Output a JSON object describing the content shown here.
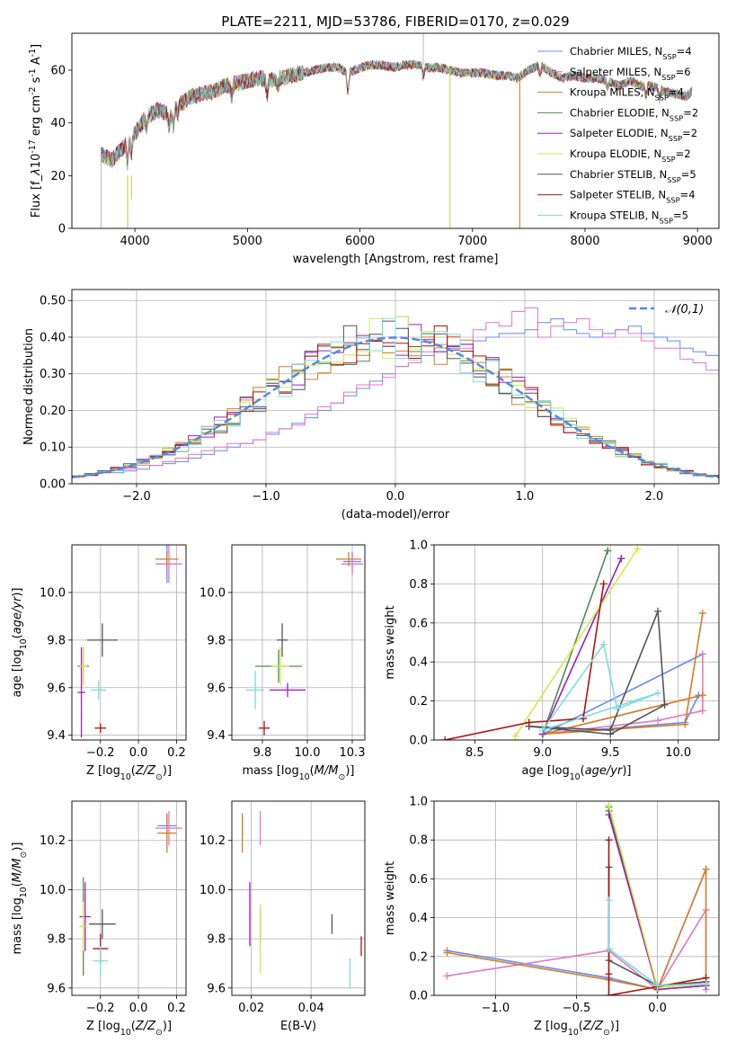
{
  "title": "PLATE=2211, MJD=53786, FIBERID=0170, z=0.029",
  "chart_data": [
    {
      "id": "spectrum",
      "type": "line",
      "title": "PLATE=2211, MJD=53786, FIBERID=0170, z=0.029",
      "xlabel": "wavelength [Angstrom, rest frame]",
      "ylabel": "Flux [f$_\\lambda$10$^{-17}$ erg cm$^{-2}$ s$^{-1}$ A$^{-1}$]",
      "xlim": [
        3440,
        9190
      ],
      "ylim": [
        0,
        74
      ],
      "xticks": [
        4000,
        5000,
        6000,
        7000,
        8000,
        9000
      ],
      "yticks": [
        0,
        20,
        40,
        60
      ],
      "grid": false,
      "legend_position": "top-right",
      "legend": [
        {
          "name": "Chabrier MILES, N$_{SSP}$=4",
          "color": "#6688ff"
        },
        {
          "name": "Salpeter MILES, N$_{SSP}$=6",
          "color": "#e377c2"
        },
        {
          "name": "Kroupa MILES, N$_{SSP}$=4",
          "color": "#d27f20"
        },
        {
          "name": "Chabrier ELODIE, N$_{SSP}$=2",
          "color": "#558855"
        },
        {
          "name": "Salpeter ELODIE, N$_{SSP}$=2",
          "color": "#9a20c0"
        },
        {
          "name": "Kroupa ELODIE, N$_{SSP}$=2",
          "color": "#d4e84e"
        },
        {
          "name": "Chabrier STELIB, N$_{SSP}$=5",
          "color": "#555555"
        },
        {
          "name": "Salpeter STELIB, N$_{SSP}$=4",
          "color": "#b01010"
        },
        {
          "name": "Kroupa STELIB, N$_{SSP}$=5",
          "color": "#7fdcdc"
        }
      ],
      "continuum": [
        [
          3700,
          28
        ],
        [
          3800,
          26
        ],
        [
          3900,
          31
        ],
        [
          4000,
          36
        ],
        [
          4100,
          42
        ],
        [
          4200,
          45
        ],
        [
          4300,
          43
        ],
        [
          4400,
          47
        ],
        [
          4500,
          50
        ],
        [
          4600,
          51
        ],
        [
          4700,
          52
        ],
        [
          4800,
          54
        ],
        [
          4900,
          55
        ],
        [
          5000,
          56
        ],
        [
          5100,
          57
        ],
        [
          5200,
          56
        ],
        [
          5300,
          57
        ],
        [
          5400,
          58
        ],
        [
          5500,
          59
        ],
        [
          5600,
          60
        ],
        [
          5700,
          61
        ],
        [
          5800,
          61
        ],
        [
          5900,
          59
        ],
        [
          6000,
          61
        ],
        [
          6100,
          62
        ],
        [
          6200,
          62
        ],
        [
          6300,
          61
        ],
        [
          6400,
          62
        ],
        [
          6500,
          62
        ],
        [
          6600,
          61
        ],
        [
          6700,
          61
        ],
        [
          6800,
          60
        ],
        [
          6900,
          59
        ],
        [
          7000,
          59
        ],
        [
          7100,
          59
        ],
        [
          7200,
          58
        ],
        [
          7300,
          58
        ],
        [
          7400,
          57
        ],
        [
          7500,
          60
        ],
        [
          7600,
          62
        ],
        [
          7700,
          59
        ],
        [
          7800,
          57
        ],
        [
          7900,
          58
        ],
        [
          8000,
          57
        ],
        [
          8100,
          57
        ],
        [
          8200,
          56
        ],
        [
          8300,
          54
        ],
        [
          8400,
          56
        ],
        [
          8500,
          54
        ],
        [
          8600,
          54
        ],
        [
          8700,
          52
        ],
        [
          8800,
          51
        ],
        [
          8900,
          50
        ],
        [
          8950,
          52
        ]
      ],
      "features": [
        {
          "x": 3700,
          "y": 0
        },
        {
          "x": 3935,
          "y": 0
        },
        {
          "x": 3970,
          "y": 11
        },
        {
          "x": 4340,
          "y": 35
        },
        {
          "x": 5175,
          "y": 46
        },
        {
          "x": 5890,
          "y": 50
        },
        {
          "x": 6563,
          "y": 74
        },
        {
          "x": 6800,
          "y": 0
        },
        {
          "x": 7420,
          "y": 0
        }
      ]
    },
    {
      "id": "residuals",
      "type": "line",
      "xlabel": "(data-model)/error",
      "ylabel": "Normed distribution",
      "xlim": [
        -2.5,
        2.5
      ],
      "ylim": [
        0,
        0.53
      ],
      "xticks": [
        -2,
        -1,
        0,
        1,
        2
      ],
      "yticks": [
        0.0,
        0.1,
        0.2,
        0.3,
        0.4,
        0.5
      ],
      "grid": true,
      "legend_position": "top-right",
      "legend": [
        {
          "name": "$\\mathcal{N}(0,1)$",
          "color": "#5588dd",
          "style": "dashed"
        }
      ],
      "reference_curve": "normal(0,1)",
      "histogram_bins": [
        -2.5,
        2.5,
        0.1
      ],
      "histogram_series": [
        {
          "color": "#6688ff",
          "values": [
            0.02,
            0.025,
            0.03,
            0.03,
            0.035,
            0.04,
            0.05,
            0.055,
            0.06,
            0.07,
            0.08,
            0.09,
            0.1,
            0.11,
            0.12,
            0.135,
            0.15,
            0.165,
            0.18,
            0.2,
            0.22,
            0.24,
            0.26,
            0.28,
            0.3,
            0.32,
            0.33,
            0.35,
            0.36,
            0.37,
            0.38,
            0.39,
            0.4,
            0.41,
            0.41,
            0.42,
            0.44,
            0.45,
            0.42,
            0.41,
            0.4,
            0.41,
            0.42,
            0.43,
            0.41,
            0.4,
            0.39,
            0.37,
            0.36,
            0.35
          ]
        },
        {
          "color": "#e377c2",
          "values": [
            0.02,
            0.025,
            0.03,
            0.04,
            0.04,
            0.05,
            0.05,
            0.06,
            0.07,
            0.08,
            0.09,
            0.1,
            0.11,
            0.11,
            0.12,
            0.14,
            0.15,
            0.16,
            0.19,
            0.21,
            0.22,
            0.25,
            0.27,
            0.27,
            0.29,
            0.32,
            0.33,
            0.36,
            0.38,
            0.4,
            0.37,
            0.42,
            0.44,
            0.43,
            0.47,
            0.48,
            0.4,
            0.43,
            0.44,
            0.45,
            0.42,
            0.4,
            0.42,
            0.41,
            0.39,
            0.37,
            0.37,
            0.34,
            0.33,
            0.31
          ]
        }
      ]
    },
    {
      "id": "age-vs-Z",
      "type": "scatter",
      "xlabel": "Z [log$_{10}$($Z/Z_\\odot$)]",
      "ylabel": "age  [log$_{10}$($age/yr$)]",
      "xlim": [
        -0.35,
        0.25
      ],
      "ylim": [
        9.38,
        10.2
      ],
      "xticks": [
        -0.2,
        0.0,
        0.2
      ],
      "yticks": [
        9.4,
        9.6,
        9.8,
        10.0
      ],
      "grid": true,
      "points": [
        {
          "x": 0.15,
          "y": 10.12,
          "xerr": 0.05,
          "yerr": 0.08,
          "color": "#6688ff"
        },
        {
          "x": 0.16,
          "y": 10.12,
          "xerr": 0.07,
          "yerr": 0.08,
          "color": "#e377c2"
        },
        {
          "x": 0.15,
          "y": 10.14,
          "xerr": 0.06,
          "yerr": 0.03,
          "color": "#d27f20"
        },
        {
          "x": -0.29,
          "y": 9.69,
          "xerr": 0.03,
          "yerr": 0.08,
          "color": "#558855"
        },
        {
          "x": -0.3,
          "y": 9.58,
          "xerr": 0.02,
          "yerr": 0.19,
          "color": "#9a20c0"
        },
        {
          "x": -0.29,
          "y": 9.69,
          "xerr": 0.02,
          "yerr": 0.08,
          "color": "#d4e84e"
        },
        {
          "x": -0.19,
          "y": 9.8,
          "xerr": 0.08,
          "yerr": 0.07,
          "color": "#555555"
        },
        {
          "x": -0.2,
          "y": 9.43,
          "xerr": 0.03,
          "yerr": 0.02,
          "color": "#b01010"
        },
        {
          "x": -0.21,
          "y": 9.59,
          "xerr": 0.04,
          "yerr": 0.04,
          "color": "#7fdcdc"
        }
      ]
    },
    {
      "id": "age-vs-mass",
      "type": "scatter",
      "xlabel": "mass [log$_{10}$($M/M_\\odot$)]",
      "ylabel": "",
      "xlim": [
        9.58,
        10.32
      ],
      "ylim": [
        9.38,
        10.2
      ],
      "xticks": [
        9.75,
        10.0,
        10.25
      ],
      "yticks": [
        9.4,
        9.6,
        9.8,
        10.0
      ],
      "grid": true,
      "points": [
        {
          "x": 10.25,
          "y": 10.13,
          "xerr": 0.05,
          "yerr": 0.04,
          "color": "#6688ff"
        },
        {
          "x": 10.25,
          "y": 10.12,
          "xerr": 0.06,
          "yerr": 0.05,
          "color": "#e377c2"
        },
        {
          "x": 10.23,
          "y": 10.14,
          "xerr": 0.07,
          "yerr": 0.03,
          "color": "#d27f20"
        },
        {
          "x": 9.84,
          "y": 9.69,
          "xerr": 0.13,
          "yerr": 0.07,
          "color": "#558855"
        },
        {
          "x": 9.89,
          "y": 9.59,
          "xerr": 0.1,
          "yerr": 0.03,
          "color": "#9a20c0"
        },
        {
          "x": 9.85,
          "y": 9.69,
          "xerr": 0.05,
          "yerr": 0.08,
          "color": "#d4e84e"
        },
        {
          "x": 9.86,
          "y": 9.8,
          "xerr": 0.03,
          "yerr": 0.07,
          "color": "#555555"
        },
        {
          "x": 9.76,
          "y": 9.43,
          "xerr": 0.03,
          "yerr": 0.03,
          "color": "#b01010"
        },
        {
          "x": 9.71,
          "y": 9.59,
          "xerr": 0.05,
          "yerr": 0.08,
          "color": "#7fdcdc"
        }
      ]
    },
    {
      "id": "weight-vs-age",
      "type": "line",
      "xlabel": "age  [log$_{10}$($age/yr$)]",
      "ylabel": "mass weight",
      "xlim": [
        8.2,
        10.3
      ],
      "ylim": [
        0,
        1.0
      ],
      "xticks": [
        8.5,
        9.0,
        9.5,
        10.0
      ],
      "yticks": [
        0.0,
        0.2,
        0.4,
        0.6,
        0.8,
        1.0
      ],
      "grid": true,
      "series": [
        {
          "color": "#6688ff",
          "x": [
            10.15,
            10.05,
            9.0,
            10.18
          ],
          "y": [
            0.23,
            0.09,
            0.03,
            0.44
          ]
        },
        {
          "color": "#e377c2",
          "x": [
            10.18,
            10.18,
            9.85,
            9.0,
            10.18
          ],
          "y": [
            0.44,
            0.15,
            0.1,
            0.03,
            0.23
          ]
        },
        {
          "color": "#d27f20",
          "x": [
            10.18,
            10.05,
            9.0,
            10.18
          ],
          "y": [
            0.65,
            0.08,
            0.03,
            0.23
          ]
        },
        {
          "color": "#558855",
          "x": [
            9.0,
            9.48,
            9.48,
            9.0
          ],
          "y": [
            0.03,
            0.97,
            0.97,
            0.03
          ]
        },
        {
          "color": "#9a20c0",
          "x": [
            9.0,
            9.58,
            9.58,
            9.0
          ],
          "y": [
            0.03,
            0.93,
            0.93,
            0.03
          ]
        },
        {
          "color": "#d4e84e",
          "x": [
            8.8,
            9.7,
            9.7,
            8.8
          ],
          "y": [
            0.02,
            0.98,
            0.98,
            0.02
          ]
        },
        {
          "color": "#555555",
          "x": [
            8.9,
            9.5,
            9.85,
            9.9,
            9.5,
            8.9
          ],
          "y": [
            0.07,
            0.05,
            0.66,
            0.18,
            0.03,
            0.07
          ]
        },
        {
          "color": "#b01010",
          "x": [
            8.28,
            8.9,
            9.3,
            9.45,
            9.3
          ],
          "y": [
            0.0,
            0.09,
            0.11,
            0.8,
            0.11
          ]
        },
        {
          "color": "#7fdcdc",
          "x": [
            9.0,
            9.45,
            9.55,
            9.85,
            9.0
          ],
          "y": [
            0.05,
            0.49,
            0.16,
            0.24,
            0.05
          ]
        }
      ]
    },
    {
      "id": "mass-vs-Z",
      "type": "scatter",
      "xlabel": "Z [log$_{10}$($Z/Z_\\odot$)]",
      "ylabel": "mass [log$_{10}$($M/M_\\odot$)]",
      "xlim": [
        -0.35,
        0.25
      ],
      "ylim": [
        9.57,
        10.36
      ],
      "xticks": [
        -0.2,
        0.0,
        0.2
      ],
      "yticks": [
        9.6,
        9.8,
        10.0,
        10.2
      ],
      "grid": true,
      "points": [
        {
          "x": 0.15,
          "y": 10.26,
          "xerr": 0.05,
          "yerr": 0.05,
          "color": "#6688ff"
        },
        {
          "x": 0.16,
          "y": 10.25,
          "xerr": 0.07,
          "yerr": 0.07,
          "color": "#e377c2"
        },
        {
          "x": 0.15,
          "y": 10.23,
          "xerr": 0.05,
          "yerr": 0.08,
          "color": "#d27f20"
        },
        {
          "x": -0.29,
          "y": 9.85,
          "xerr": 0.02,
          "yerr": 0.2,
          "color": "#558855"
        },
        {
          "x": -0.28,
          "y": 9.89,
          "xerr": 0.03,
          "yerr": 0.14,
          "color": "#9a20c0"
        },
        {
          "x": -0.29,
          "y": 9.85,
          "xerr": 0.02,
          "yerr": 0.1,
          "color": "#d4e84e"
        },
        {
          "x": -0.19,
          "y": 9.86,
          "xerr": 0.07,
          "yerr": 0.06,
          "color": "#555555"
        },
        {
          "x": -0.2,
          "y": 9.76,
          "xerr": 0.04,
          "yerr": 0.06,
          "color": "#b01010"
        },
        {
          "x": -0.2,
          "y": 9.71,
          "xerr": 0.04,
          "yerr": 0.06,
          "color": "#7fdcdc"
        }
      ]
    },
    {
      "id": "mass-vs-EBV",
      "type": "scatter",
      "xlabel": "E(B-V)",
      "ylabel": "",
      "xlim": [
        0.0135,
        0.058
      ],
      "ylim": [
        9.57,
        10.36
      ],
      "xticks": [
        0.02,
        0.04
      ],
      "yticks": [
        9.6,
        9.8,
        10.0,
        10.2
      ],
      "grid": true,
      "points": [
        {
          "x": 0.017,
          "y": 10.26,
          "yerr": 0.05,
          "color": "#6688ff"
        },
        {
          "x": 0.023,
          "y": 10.25,
          "yerr": 0.07,
          "color": "#e377c2"
        },
        {
          "x": 0.017,
          "y": 10.23,
          "yerr": 0.08,
          "color": "#d27f20"
        },
        {
          "x": 0.023,
          "y": 9.85,
          "yerr": 0.07,
          "color": "#558855"
        },
        {
          "x": 0.0195,
          "y": 9.9,
          "yerr": 0.13,
          "color": "#9a20c0"
        },
        {
          "x": 0.023,
          "y": 9.8,
          "yerr": 0.14,
          "color": "#d4e84e"
        },
        {
          "x": 0.047,
          "y": 9.86,
          "yerr": 0.04,
          "color": "#555555"
        },
        {
          "x": 0.0568,
          "y": 9.77,
          "yerr": 0.04,
          "color": "#b01010"
        },
        {
          "x": 0.053,
          "y": 9.66,
          "yerr": 0.06,
          "color": "#7fdcdc"
        }
      ]
    },
    {
      "id": "weight-vs-Z",
      "type": "line",
      "xlabel": "Z [log$_{10}$($Z/Z_\\odot$)]",
      "ylabel": "mass weight",
      "xlim": [
        -1.38,
        0.38
      ],
      "ylim": [
        0,
        1.0
      ],
      "xticks": [
        -1.0,
        -0.5,
        0.0
      ],
      "yticks": [
        0.0,
        0.2,
        0.4,
        0.6,
        0.8,
        1.0
      ],
      "grid": true,
      "series": [
        {
          "color": "#6688ff",
          "x": [
            -1.3,
            -0.3,
            0.0,
            0.3
          ],
          "y": [
            0.23,
            0.09,
            0.03,
            0.65
          ]
        },
        {
          "color": "#e377c2",
          "x": [
            -1.3,
            -0.3,
            0.0,
            0.3,
            0.3
          ],
          "y": [
            0.1,
            0.23,
            0.03,
            0.44,
            0.03
          ]
        },
        {
          "color": "#d27f20",
          "x": [
            -1.3,
            -0.3,
            0.0,
            0.3,
            0.3
          ],
          "y": [
            0.22,
            0.08,
            0.03,
            0.65,
            0.05
          ]
        },
        {
          "color": "#558855",
          "x": [
            -0.3,
            -0.3,
            0.0,
            0.3
          ],
          "y": [
            0.97,
            0.95,
            0.03,
            0.05
          ]
        },
        {
          "color": "#9a20c0",
          "x": [
            -0.3,
            0.0,
            0.3
          ],
          "y": [
            0.93,
            0.03,
            0.05
          ]
        },
        {
          "color": "#d4e84e",
          "x": [
            -0.3,
            0.0,
            0.3
          ],
          "y": [
            0.98,
            0.04,
            0.06
          ]
        },
        {
          "color": "#555555",
          "x": [
            -0.3,
            -0.3,
            0.0,
            0.3
          ],
          "y": [
            0.66,
            0.18,
            0.05,
            0.07
          ]
        },
        {
          "color": "#b01010",
          "x": [
            -0.3,
            -0.3,
            -0.3,
            0.3
          ],
          "y": [
            0.8,
            0.11,
            0.0,
            0.09
          ]
        },
        {
          "color": "#7fdcdc",
          "x": [
            -0.3,
            -0.3,
            0.0,
            0.3
          ],
          "y": [
            0.49,
            0.24,
            0.05,
            0.06
          ]
        }
      ]
    }
  ]
}
